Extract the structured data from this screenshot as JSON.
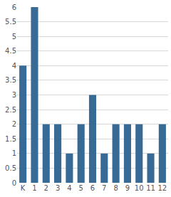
{
  "chart_data": {
    "type": "bar",
    "categories": [
      "K",
      "1",
      "2",
      "3",
      "4",
      "5",
      "6",
      "7",
      "8",
      "9",
      "10",
      "11",
      "12"
    ],
    "values": [
      4,
      6,
      2,
      2,
      1,
      2,
      3,
      1,
      2,
      2,
      2,
      1,
      2
    ],
    "color": "#376a94",
    "ylim": [
      0,
      6
    ],
    "yticks": [
      0,
      0.5,
      1,
      1.5,
      2,
      2.5,
      3,
      3.5,
      4,
      4.5,
      5,
      5.5,
      6
    ],
    "grid": true
  }
}
